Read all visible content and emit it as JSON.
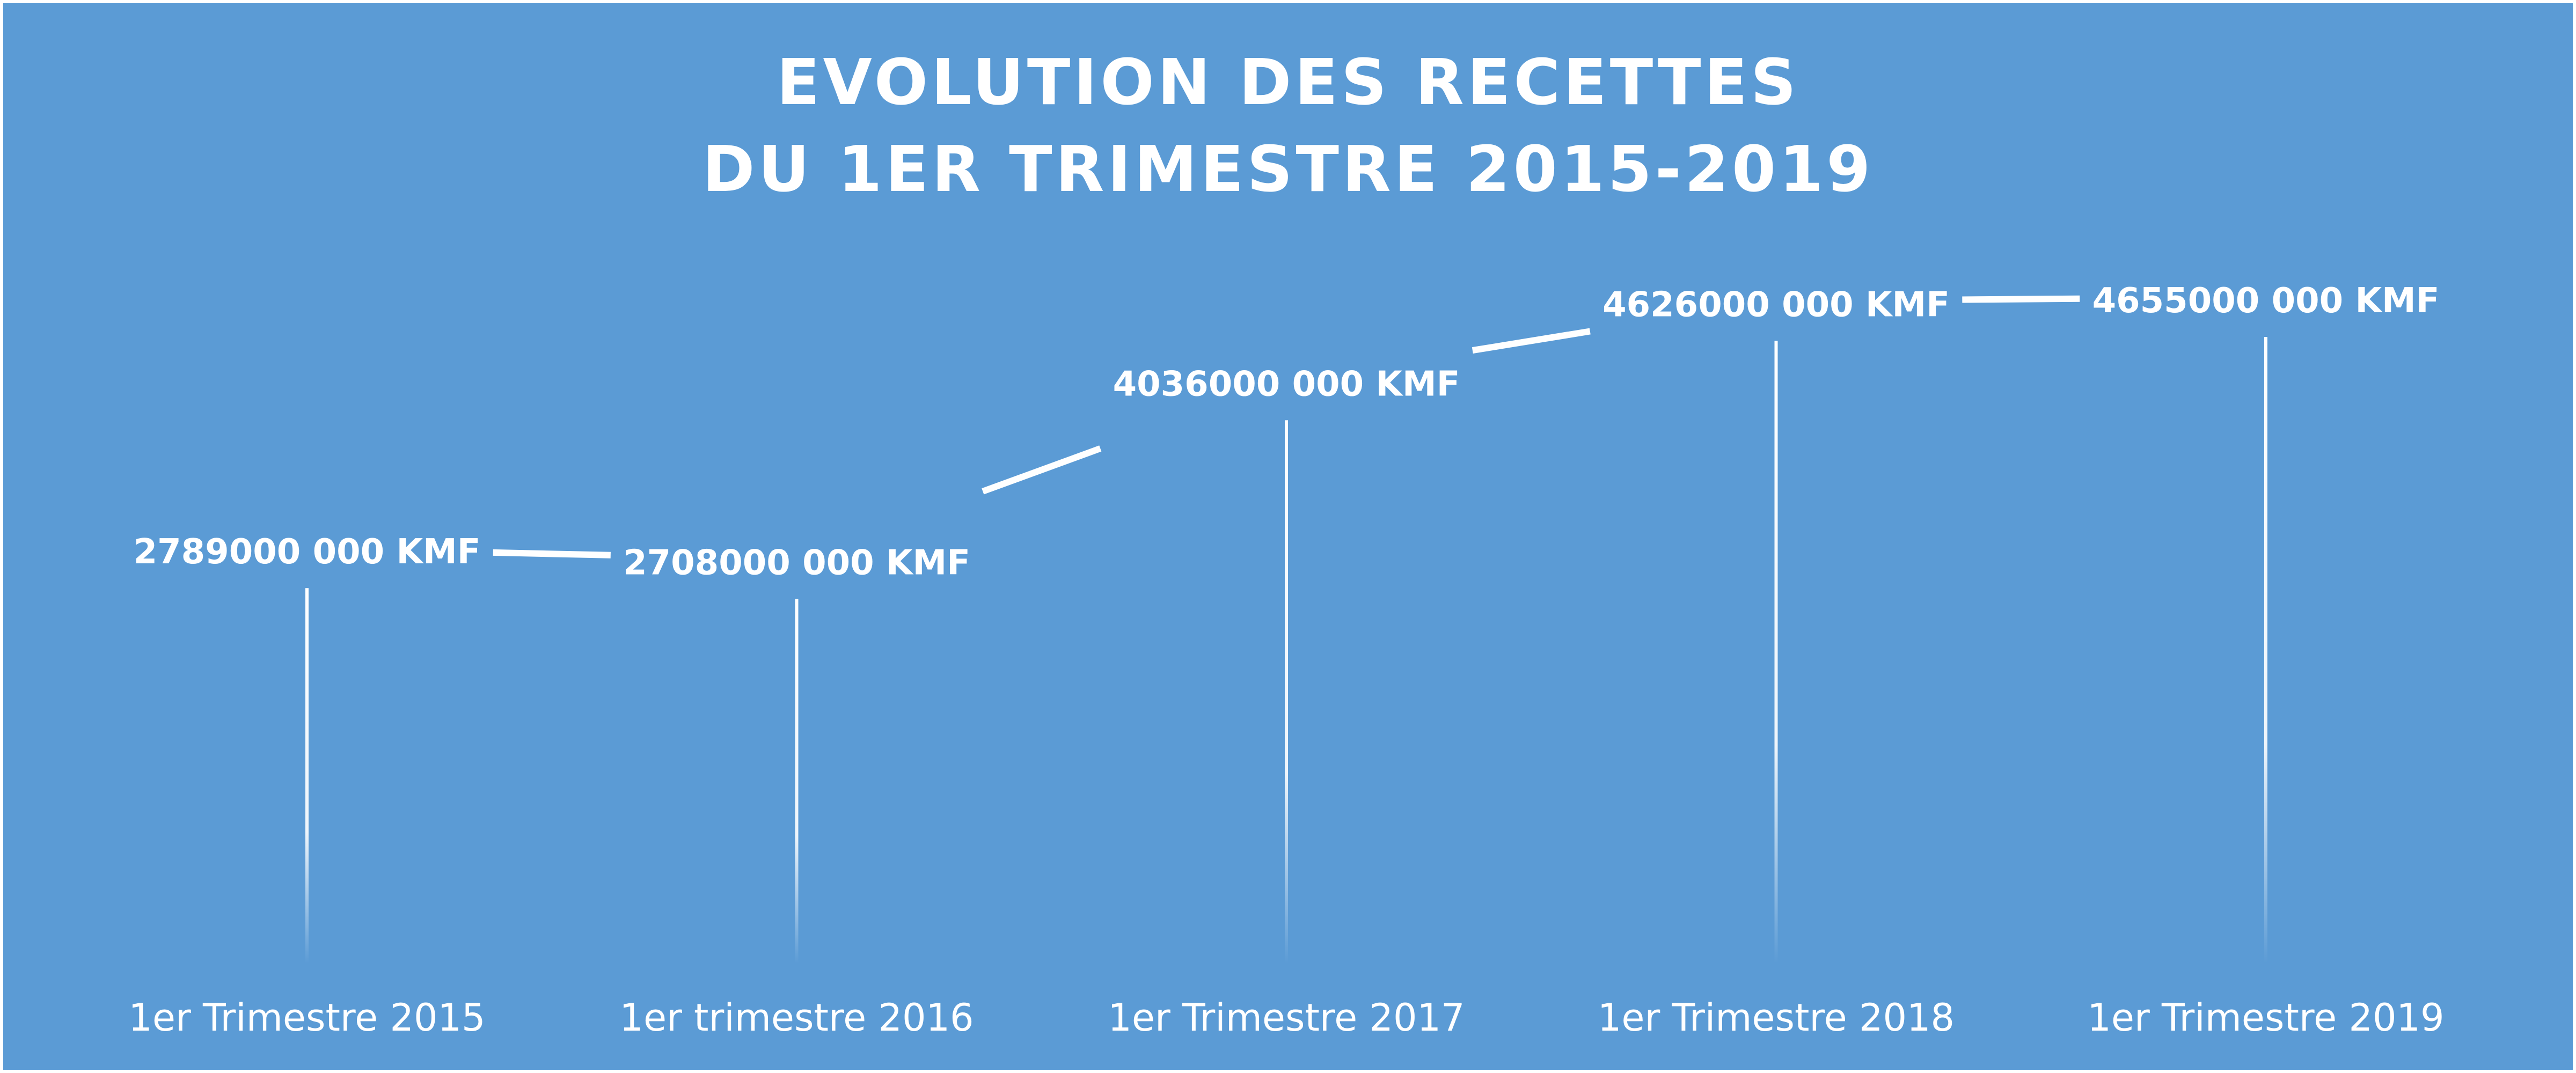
{
  "chart_data": {
    "type": "line",
    "title_lines": [
      "EVOLUTION DES RECETTES",
      "DU 1ER TRIMESTRE 2015-2019"
    ],
    "categories": [
      "1er Trimestre 2015",
      "1er trimestre 2016",
      "1er Trimestre 2017",
      "1er Trimestre 2018",
      "1er Trimestre 2019"
    ],
    "values": [
      2789000000,
      2708000000,
      4036000000,
      4626000000,
      4655000000
    ],
    "data_labels": [
      "2789000 000 KMF",
      "2708000 000 KMF",
      "4036000 000 KMF",
      "4626000 000 KMF",
      "4655000 000 KMF"
    ],
    "ylim": [
      0,
      4655000000
    ],
    "grid": false,
    "colors": {
      "background": "#5b9bd5",
      "marks": "#ffffff"
    }
  }
}
